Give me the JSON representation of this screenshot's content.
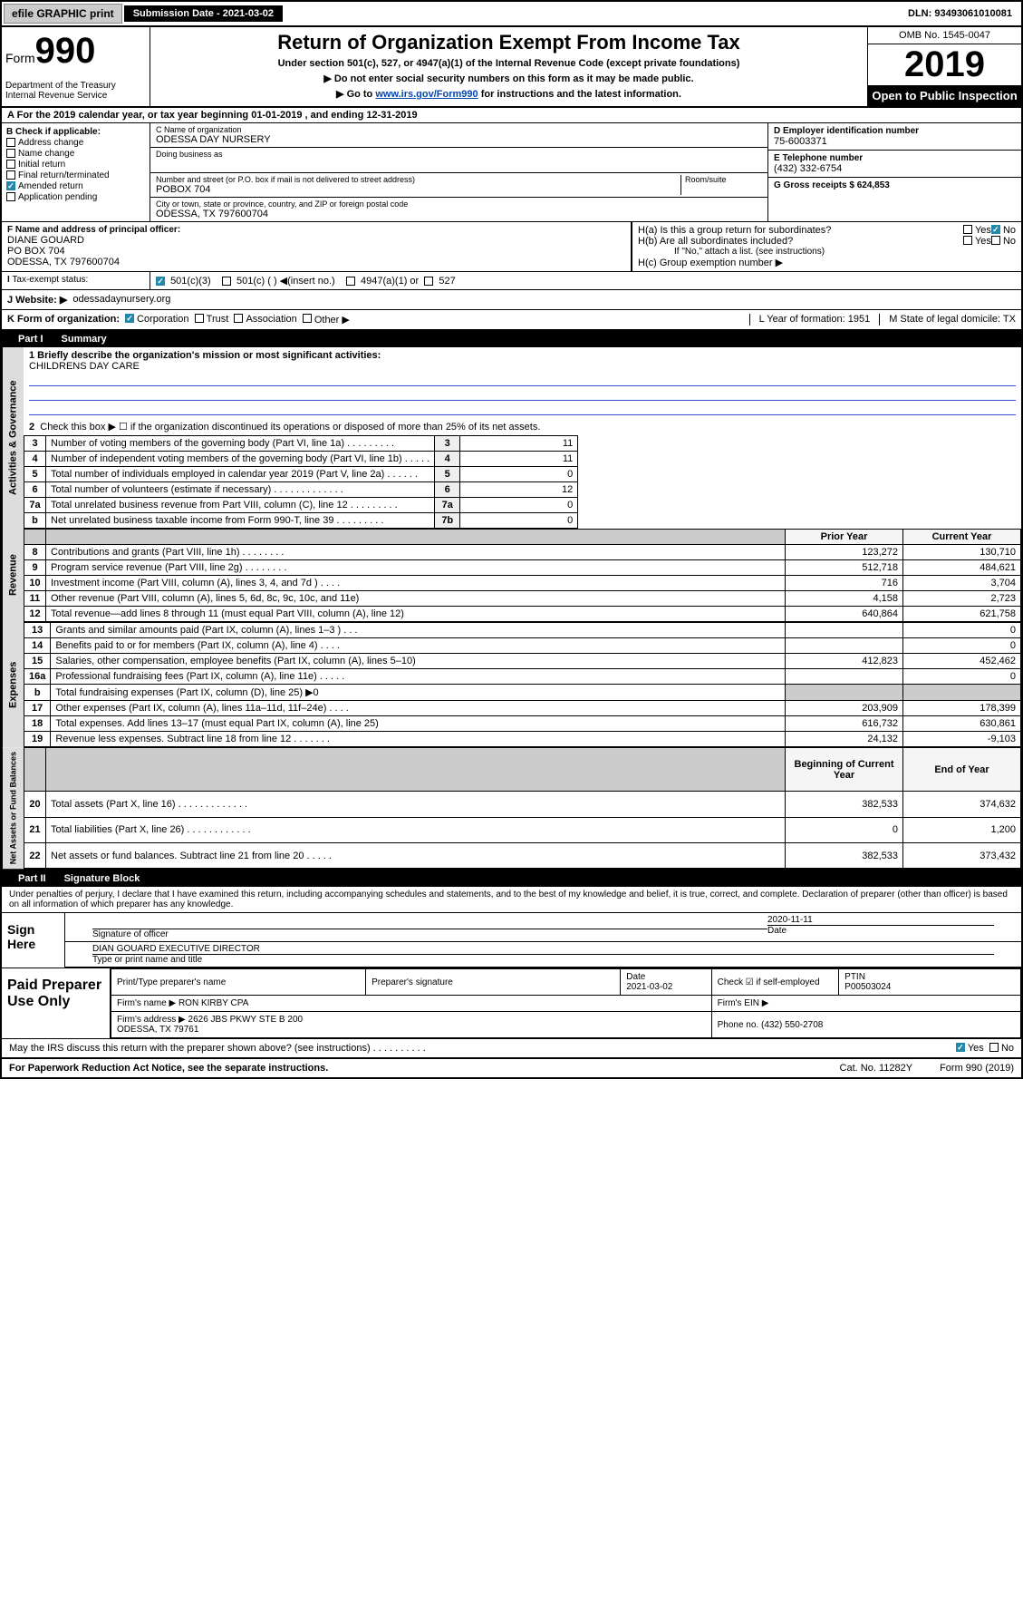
{
  "topbar": {
    "efile": "efile GRAPHIC print",
    "subdate_label": "Submission Date - 2021-03-02",
    "dln_label": "DLN: 93493061010081"
  },
  "header": {
    "form_label": "Form",
    "form_num": "990",
    "title": "Return of Organization Exempt From Income Tax",
    "subtitle": "Under section 501(c), 527, or 4947(a)(1) of the Internal Revenue Code (except private foundations)",
    "noss": "▶ Do not enter social security numbers on this form as it may be made public.",
    "goto_pre": "▶ Go to ",
    "goto_link": "www.irs.gov/Form990",
    "goto_post": " for instructions and the latest information.",
    "dept": "Department of the Treasury\nInternal Revenue Service",
    "omb": "OMB No. 1545-0047",
    "year": "2019",
    "openpub": "Open to Public Inspection"
  },
  "A": {
    "tax_year": "For the 2019 calendar year, or tax year beginning 01-01-2019   , and ending 12-31-2019"
  },
  "B": {
    "label": "B Check if applicable:",
    "items": [
      "Address change",
      "Name change",
      "Initial return",
      "Final return/terminated",
      "Amended return",
      "Application pending"
    ]
  },
  "C": {
    "name_label": "C Name of organization",
    "name": "ODESSA DAY NURSERY",
    "dba_label": "Doing business as",
    "addr_label": "Number and street (or P.O. box if mail is not delivered to street address)",
    "room_label": "Room/suite",
    "addr": "POBOX 704",
    "city_label": "City or town, state or province, country, and ZIP or foreign postal code",
    "city": "ODESSA, TX  797600704"
  },
  "D": {
    "label": "D Employer identification number",
    "val": "75-6003371"
  },
  "E": {
    "label": "E Telephone number",
    "val": "(432) 332-6754"
  },
  "G": {
    "label": "G Gross receipts $ 624,853"
  },
  "F": {
    "label": "F  Name and address of principal officer:",
    "name": "DIANE GOUARD",
    "addr1": "PO BOX 704",
    "addr2": "ODESSA, TX  797600704"
  },
  "H": {
    "a": "H(a)  Is this a group return for subordinates?",
    "b": "H(b)  Are all subordinates included?",
    "bnote": "If \"No,\" attach a list. (see instructions)",
    "c": "H(c)  Group exemption number ▶"
  },
  "I": {
    "label": "Tax-exempt status:",
    "opts": [
      "501(c)(3)",
      "501(c) (  ) ◀(insert no.)",
      "4947(a)(1) or",
      "527"
    ]
  },
  "J": {
    "label": "J  Website: ▶",
    "val": "odessadaynursery.org"
  },
  "K": {
    "label": "K Form of organization:",
    "corp": "Corporation",
    "trust": "Trust",
    "assoc": "Association",
    "other": "Other ▶"
  },
  "L": {
    "label": "L Year of formation: 1951"
  },
  "M": {
    "label": "M State of legal domicile: TX"
  },
  "part1": {
    "hdr": "Part I",
    "title": "Summary",
    "mission_label": "1  Briefly describe the organization's mission or most significant activities:",
    "mission": "CHILDRENS DAY CARE",
    "line2": "Check this box ▶ ☐  if the organization discontinued its operations or disposed of more than 25% of its net assets.",
    "rows": [
      {
        "n": "3",
        "d": "Number of voting members of the governing body (Part VI, line 1a)  .     .     .     .     .     .     .     .     .",
        "b": "3",
        "v": "11"
      },
      {
        "n": "4",
        "d": "Number of independent voting members of the governing body (Part VI, line 1b)  .     .     .     .     .",
        "b": "4",
        "v": "11"
      },
      {
        "n": "5",
        "d": "Total number of individuals employed in calendar year 2019 (Part V, line 2a)  .     .     .     .     .     .",
        "b": "5",
        "v": "0"
      },
      {
        "n": "6",
        "d": "Total number of volunteers (estimate if necessary)  .     .     .     .     .     .     .     .     .     .     .     .     .",
        "b": "6",
        "v": "12"
      },
      {
        "n": "7a",
        "d": "Total unrelated business revenue from Part VIII, column (C), line 12  .     .     .     .     .     .     .     .     .",
        "b": "7a",
        "v": "0"
      },
      {
        "n": "b",
        "d": "Net unrelated business taxable income from Form 990-T, line 39  .     .     .     .     .     .     .     .     .",
        "b": "7b",
        "v": "0"
      }
    ],
    "revhdr_prior": "Prior Year",
    "revhdr_cur": "Current Year",
    "rev": [
      {
        "n": "8",
        "d": "Contributions and grants (Part VIII, line 1h)  .     .     .     .     .     .     .     .",
        "p": "123,272",
        "c": "130,710"
      },
      {
        "n": "9",
        "d": "Program service revenue (Part VIII, line 2g)  .     .     .     .     .     .     .     .",
        "p": "512,718",
        "c": "484,621"
      },
      {
        "n": "10",
        "d": "Investment income (Part VIII, column (A), lines 3, 4, and 7d )  .     .     .     .",
        "p": "716",
        "c": "3,704"
      },
      {
        "n": "11",
        "d": "Other revenue (Part VIII, column (A), lines 5, 6d, 8c, 9c, 10c, and 11e)",
        "p": "4,158",
        "c": "2,723"
      },
      {
        "n": "12",
        "d": "Total revenue—add lines 8 through 11 (must equal Part VIII, column (A), line 12)",
        "p": "640,864",
        "c": "621,758"
      }
    ],
    "exp": [
      {
        "n": "13",
        "d": "Grants and similar amounts paid (Part IX, column (A), lines 1–3 )  .     .     .",
        "p": "",
        "c": "0"
      },
      {
        "n": "14",
        "d": "Benefits paid to or for members (Part IX, column (A), line 4)  .     .     .     .",
        "p": "",
        "c": "0"
      },
      {
        "n": "15",
        "d": "Salaries, other compensation, employee benefits (Part IX, column (A), lines 5–10)",
        "p": "412,823",
        "c": "452,462"
      },
      {
        "n": "16a",
        "d": "Professional fundraising fees (Part IX, column (A), line 11e)  .     .     .     .     .",
        "p": "",
        "c": "0"
      },
      {
        "n": "b",
        "d": "Total fundraising expenses (Part IX, column (D), line 25) ▶0",
        "p": "grey",
        "c": "grey"
      },
      {
        "n": "17",
        "d": "Other expenses (Part IX, column (A), lines 11a–11d, 11f–24e)  .     .     .     .",
        "p": "203,909",
        "c": "178,399"
      },
      {
        "n": "18",
        "d": "Total expenses. Add lines 13–17 (must equal Part IX, column (A), line 25)",
        "p": "616,732",
        "c": "630,861"
      },
      {
        "n": "19",
        "d": "Revenue less expenses. Subtract line 18 from line 12  .     .     .     .     .     .     .",
        "p": "24,132",
        "c": "-9,103"
      }
    ],
    "nahdr_beg": "Beginning of Current Year",
    "nahdr_end": "End of Year",
    "na": [
      {
        "n": "20",
        "d": "Total assets (Part X, line 16)  .     .     .     .     .     .     .     .     .     .     .     .     .",
        "p": "382,533",
        "c": "374,632"
      },
      {
        "n": "21",
        "d": "Total liabilities (Part X, line 26)  .     .     .     .     .     .     .     .     .     .     .     .",
        "p": "0",
        "c": "1,200"
      },
      {
        "n": "22",
        "d": "Net assets or fund balances. Subtract line 21 from line 20  .     .     .     .     .",
        "p": "382,533",
        "c": "373,432"
      }
    ]
  },
  "part2": {
    "hdr": "Part II",
    "title": "Signature Block",
    "perjury": "Under penalties of perjury, I declare that I have examined this return, including accompanying schedules and statements, and to the best of my knowledge and belief, it is true, correct, and complete. Declaration of preparer (other than officer) is based on all information of which preparer has any knowledge.",
    "sign_label": "Sign Here",
    "sig_of": "Signature of officer",
    "sig_date": "2020-11-11",
    "sig_date_lbl": "Date",
    "name_title": "DIAN GOUARD  EXECUTIVE DIRECTOR",
    "name_title_lbl": "Type or print name and title",
    "paid_label": "Paid Preparer Use Only",
    "prep_name_lbl": "Print/Type preparer's name",
    "prep_sig_lbl": "Preparer's signature",
    "prep_date_lbl": "Date",
    "prep_date": "2021-03-02",
    "prep_check": "Check ☑ if self-employed",
    "ptin_lbl": "PTIN",
    "ptin": "P00503024",
    "firm_name_lbl": "Firm's name    ▶",
    "firm_name": "RON KIRBY CPA",
    "firm_ein_lbl": "Firm's EIN ▶",
    "firm_addr_lbl": "Firm's address ▶",
    "firm_addr": "2626 JBS PKWY STE B 200\nODESSA, TX  79761",
    "firm_phone_lbl": "Phone no. (432) 550-2708",
    "discuss": "May the IRS discuss this return with the preparer shown above? (see instructions)   .     .     .     .     .     .     .     .     .     ."
  },
  "footer": {
    "pra": "For Paperwork Reduction Act Notice, see the separate instructions.",
    "cat": "Cat. No. 11282Y",
    "form": "Form 990 (2019)"
  },
  "yn": {
    "yes": "Yes",
    "no": "No"
  },
  "style": {
    "bg": "#ffffff",
    "border": "#000000",
    "link": "#0645ad",
    "greybox": "#cccccc",
    "vert_bg": "#dddddd",
    "check_color": "#2288aa",
    "misssion_line": "#3355cc"
  }
}
